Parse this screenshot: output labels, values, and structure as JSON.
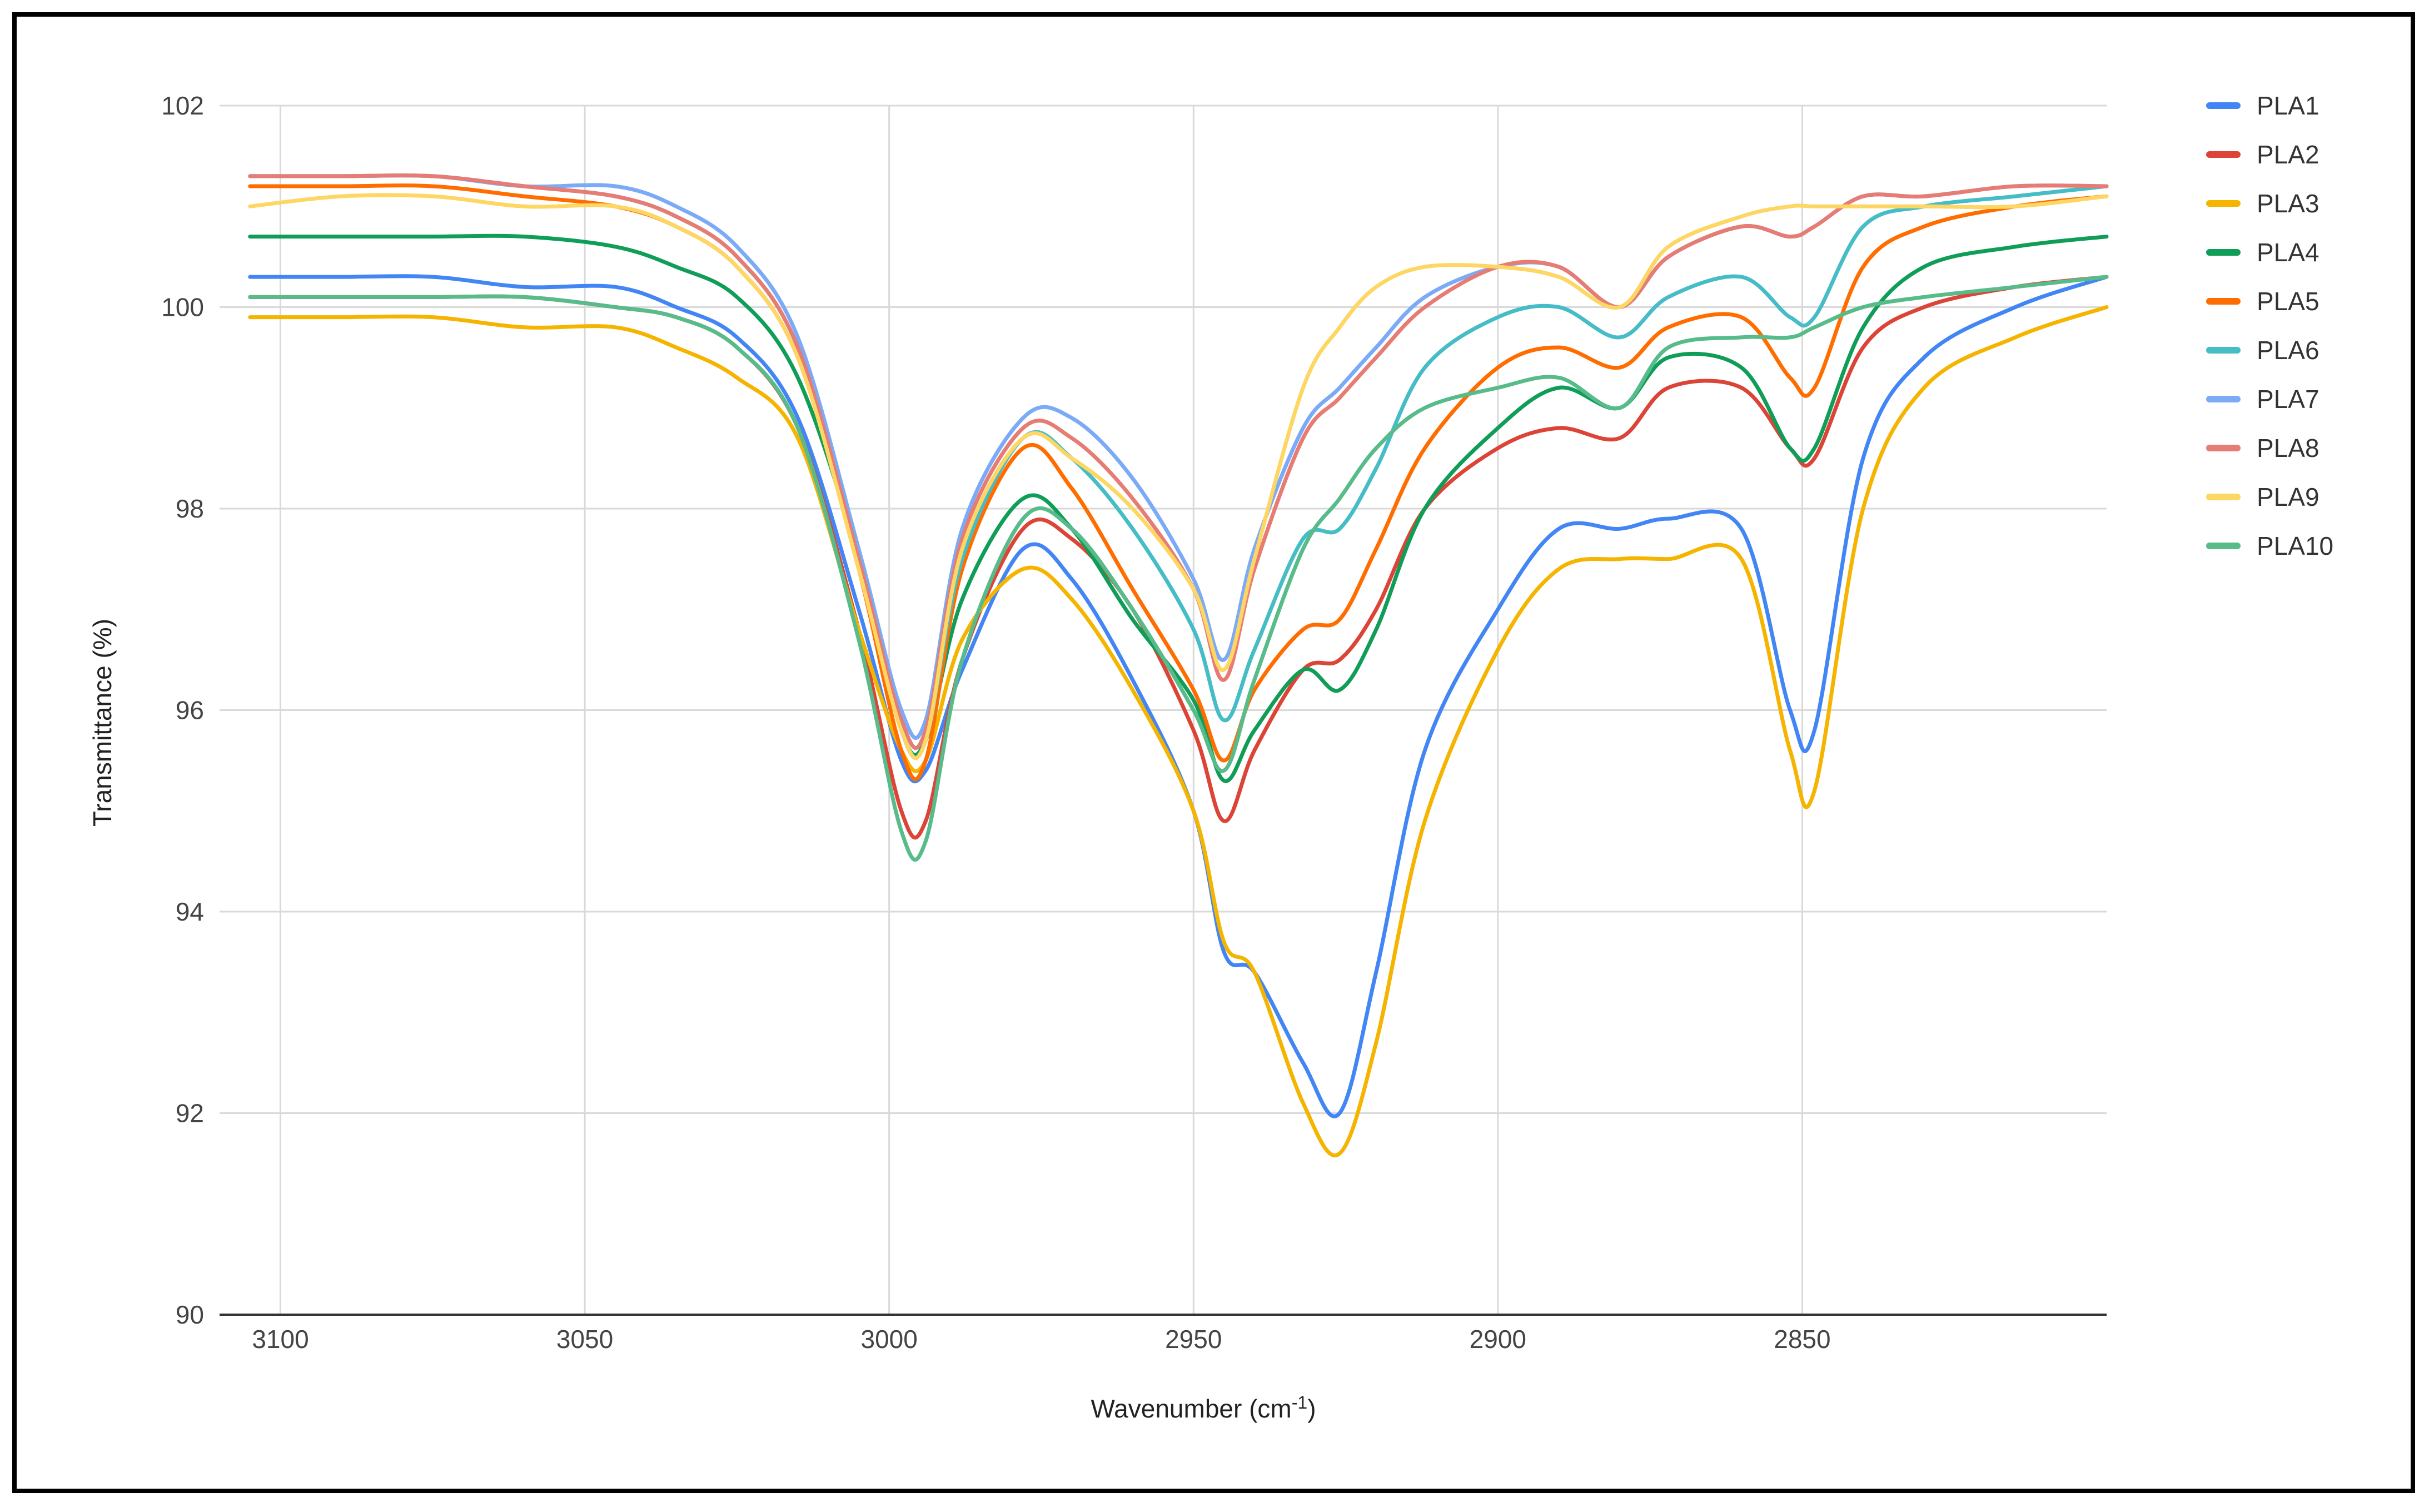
{
  "chart_data": {
    "type": "line",
    "title": "",
    "xlabel": "Wavenumber (cm",
    "xlabel_sup": "-1",
    "xlabel_end": ")",
    "ylabel": "Transmittance (%)",
    "xlim": [
      3110,
      2800
    ],
    "ylim": [
      90,
      102
    ],
    "x_reversed": true,
    "grid": true,
    "legend_position": "right",
    "x_ticks": [
      3100,
      3050,
      3000,
      2950,
      2900,
      2850
    ],
    "x_tick_labels": [
      "3100",
      "3050",
      "3000",
      "2950",
      "2900",
      "2850"
    ],
    "y_ticks": [
      90,
      92,
      94,
      96,
      98,
      100,
      102
    ],
    "y_tick_labels": [
      "90",
      "92",
      "94",
      "96",
      "98",
      "100",
      "102"
    ],
    "x": [
      3105,
      3090,
      3075,
      3060,
      3045,
      3035,
      3025,
      3015,
      3005,
      2998,
      2994,
      2988,
      2978,
      2970,
      2960,
      2950,
      2945,
      2940,
      2932,
      2926,
      2920,
      2912,
      2900,
      2890,
      2880,
      2872,
      2860,
      2852,
      2848,
      2840,
      2830,
      2815,
      2800
    ],
    "series": [
      {
        "name": "PLA1",
        "color": "#4285f4",
        "values": [
          100.3,
          100.3,
          100.3,
          100.2,
          100.2,
          100.0,
          99.7,
          98.9,
          97.0,
          95.5,
          95.4,
          96.4,
          97.6,
          97.3,
          96.3,
          95.0,
          93.6,
          93.4,
          92.5,
          92.0,
          93.4,
          95.6,
          97.0,
          97.8,
          97.8,
          97.9,
          97.8,
          96.0,
          95.8,
          98.5,
          99.5,
          100.0,
          100.3
        ]
      },
      {
        "name": "PLA2",
        "color": "#db4437",
        "values": [
          100.1,
          100.1,
          100.1,
          100.1,
          100.0,
          99.9,
          99.6,
          98.8,
          96.8,
          95.0,
          94.9,
          96.5,
          97.8,
          97.7,
          97.0,
          95.8,
          94.9,
          95.6,
          96.4,
          96.5,
          97.0,
          98.0,
          98.6,
          98.8,
          98.7,
          99.2,
          99.2,
          98.6,
          98.5,
          99.6,
          100.0,
          100.2,
          100.3
        ]
      },
      {
        "name": "PLA3",
        "color": "#f4b400",
        "values": [
          99.9,
          99.9,
          99.9,
          99.8,
          99.8,
          99.6,
          99.3,
          98.7,
          96.8,
          95.6,
          95.5,
          96.7,
          97.4,
          97.1,
          96.2,
          95.0,
          93.7,
          93.4,
          92.1,
          91.6,
          92.7,
          94.9,
          96.6,
          97.4,
          97.5,
          97.5,
          97.5,
          95.6,
          95.2,
          98.0,
          99.2,
          99.7,
          100.0
        ]
      },
      {
        "name": "PLA4",
        "color": "#0f9d58",
        "values": [
          100.7,
          100.7,
          100.7,
          100.7,
          100.6,
          100.4,
          100.1,
          99.3,
          97.5,
          95.8,
          95.7,
          97.1,
          98.1,
          97.8,
          96.9,
          96.1,
          95.3,
          95.8,
          96.4,
          96.2,
          96.8,
          98.0,
          98.8,
          99.2,
          99.0,
          99.5,
          99.4,
          98.6,
          98.6,
          99.8,
          100.4,
          100.6,
          100.7
        ]
      },
      {
        "name": "PLA5",
        "color": "#ff6d00",
        "values": [
          101.2,
          101.2,
          101.2,
          101.1,
          101.0,
          100.8,
          100.4,
          99.5,
          97.4,
          95.6,
          95.5,
          97.4,
          98.6,
          98.2,
          97.2,
          96.2,
          95.5,
          96.2,
          96.8,
          96.9,
          97.6,
          98.6,
          99.4,
          99.6,
          99.4,
          99.8,
          99.9,
          99.3,
          99.2,
          100.4,
          100.8,
          101.0,
          101.1
        ]
      },
      {
        "name": "PLA6",
        "color": "#46bdc6",
        "values": [
          101.3,
          101.3,
          101.3,
          101.2,
          101.1,
          100.9,
          100.5,
          99.6,
          97.5,
          95.8,
          95.7,
          97.5,
          98.7,
          98.5,
          97.8,
          96.8,
          95.9,
          96.6,
          97.7,
          97.8,
          98.4,
          99.4,
          99.9,
          100.0,
          99.7,
          100.1,
          100.3,
          99.9,
          99.9,
          100.8,
          101.0,
          101.1,
          101.2
        ]
      },
      {
        "name": "PLA7",
        "color": "#7baaf7",
        "values": [
          101.3,
          101.3,
          101.3,
          101.2,
          101.2,
          101.0,
          100.6,
          99.7,
          97.6,
          96.0,
          95.9,
          97.8,
          98.9,
          98.9,
          98.3,
          97.3,
          96.5,
          97.6,
          98.8,
          99.2,
          99.6,
          100.1,
          100.4,
          100.4,
          100.0,
          100.5,
          100.8,
          100.7,
          100.8,
          101.1,
          101.1,
          101.2,
          101.2
        ]
      },
      {
        "name": "PLA8",
        "color": "#e67c73",
        "values": [
          101.3,
          101.3,
          101.3,
          101.2,
          101.1,
          100.9,
          100.5,
          99.6,
          97.5,
          95.9,
          95.8,
          97.7,
          98.8,
          98.7,
          98.1,
          97.2,
          96.3,
          97.4,
          98.7,
          99.1,
          99.5,
          100.0,
          100.4,
          100.4,
          100.0,
          100.5,
          100.8,
          100.7,
          100.8,
          101.1,
          101.1,
          101.2,
          101.2
        ]
      },
      {
        "name": "PLA9",
        "color": "#fdd663",
        "values": [
          101.0,
          101.1,
          101.1,
          101.0,
          101.0,
          100.8,
          100.4,
          99.5,
          97.4,
          95.8,
          95.7,
          97.6,
          98.7,
          98.5,
          98.0,
          97.2,
          96.4,
          97.5,
          99.2,
          99.8,
          100.2,
          100.4,
          100.4,
          100.3,
          100.0,
          100.6,
          100.9,
          101.0,
          101.0,
          101.0,
          101.0,
          101.0,
          101.1
        ]
      },
      {
        "name": "PLA10",
        "color": "#57bb8a",
        "values": [
          100.1,
          100.1,
          100.1,
          100.1,
          100.0,
          99.9,
          99.6,
          98.8,
          96.7,
          94.8,
          94.7,
          96.5,
          97.9,
          97.8,
          97.0,
          96.0,
          95.4,
          96.3,
          97.6,
          98.1,
          98.6,
          99.0,
          99.2,
          99.3,
          99.0,
          99.6,
          99.7,
          99.7,
          99.8,
          100.0,
          100.1,
          100.2,
          100.3
        ]
      }
    ]
  }
}
